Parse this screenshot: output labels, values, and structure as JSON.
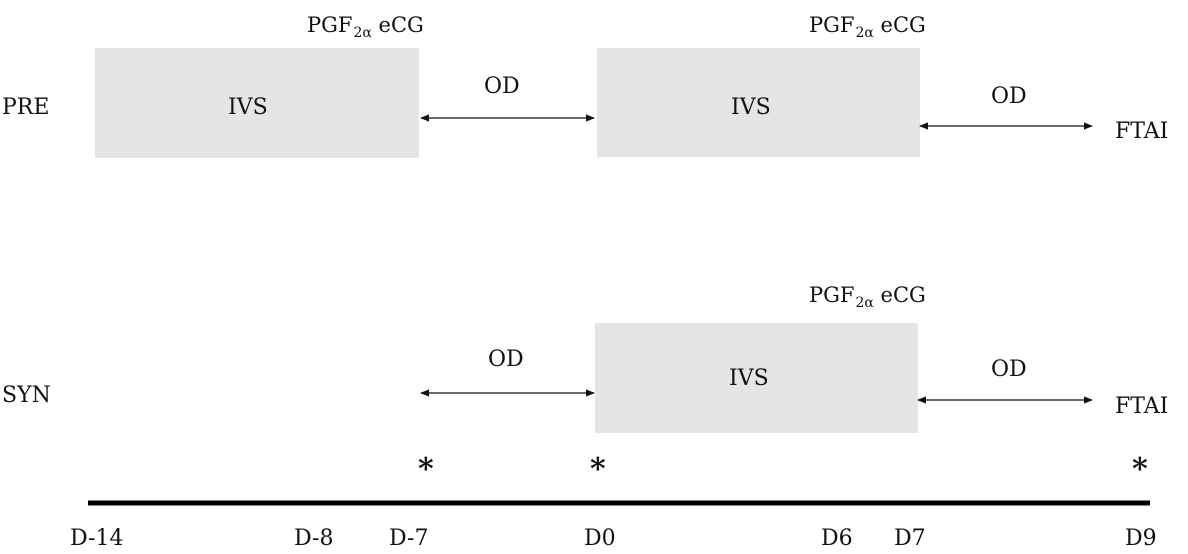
{
  "rows": [
    {
      "label": "PRE",
      "boxes": [
        {
          "label": "IVS",
          "header": {
            "main": "PGF",
            "sub": "2α",
            "suffix": " eCG"
          }
        },
        {
          "label": "IVS",
          "header": {
            "main": "PGF",
            "sub": "2α",
            "suffix": " eCG"
          }
        }
      ],
      "arrows": [
        "OD",
        "OD"
      ],
      "end_label": "FTAI"
    },
    {
      "label": "SYN",
      "boxes": [
        {
          "label": "IVS",
          "header": {
            "main": "PGF",
            "sub": "2α",
            "suffix": " eCG"
          }
        }
      ],
      "arrows": [
        "OD",
        "OD"
      ],
      "end_label": "FTAI"
    }
  ],
  "markers": [
    "*",
    "*",
    "*"
  ],
  "timeline": [
    "D-14",
    "D-8",
    "D-7",
    "D0",
    "D6",
    "D7",
    "D9"
  ]
}
